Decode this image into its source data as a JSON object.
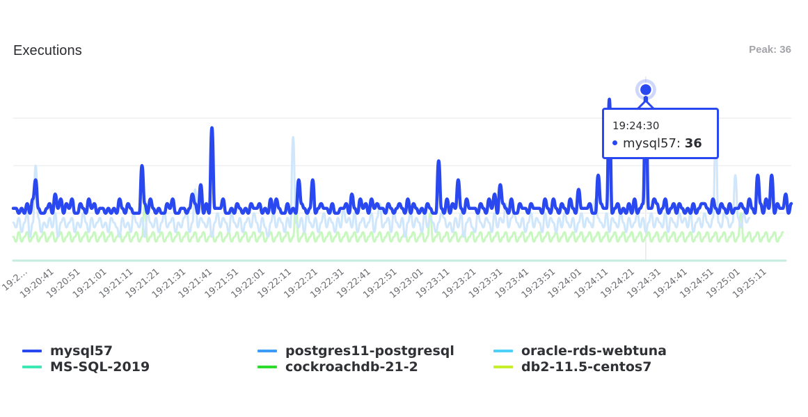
{
  "header": {
    "title": "Executions",
    "peak_label": "Peak: 36"
  },
  "tooltip": {
    "time": "19:24:30",
    "series": "mysql57",
    "separator": ":",
    "value": "36",
    "color": "#2a48f0"
  },
  "legend": [
    {
      "label": "mysql57",
      "color": "#2a48f0"
    },
    {
      "label": "postgres11-postgresql",
      "color": "#3d9cf5"
    },
    {
      "label": "oracle-rds-webtuna",
      "color": "#4fd0f7"
    },
    {
      "label": "MS-SQL-2019",
      "color": "#3ee8b3"
    },
    {
      "label": "cockroachdb-21-2",
      "color": "#2ddc2d"
    },
    {
      "label": "db2-11.5-centos7",
      "color": "#c6ef2a"
    }
  ],
  "chart_data": {
    "type": "line",
    "title": "Executions",
    "subtitle": "Peak: 36",
    "xlabel": "",
    "ylabel": "",
    "ylim": [
      0,
      36
    ],
    "grid": true,
    "gridlines_y": [
      10,
      20,
      30
    ],
    "legend_position": "bottom",
    "x_tick_labels": [
      "19:2…",
      "19:20:41",
      "19:20:51",
      "19:21:01",
      "19:21:11",
      "19:21:21",
      "19:21:31",
      "19:21:41",
      "19:21:51",
      "19:22:01",
      "19:22:11",
      "19:22:21",
      "19:22:31",
      "19:22:41",
      "19:22:51",
      "19:23:01",
      "19:23:11",
      "19:23:21",
      "19:23:31",
      "19:23:41",
      "19:23:51",
      "19:24:01",
      "19:24:11",
      "19:24:21",
      "19:24:31",
      "19:24:41",
      "19:24:51",
      "19:25:01",
      "19:25:11"
    ],
    "x_start": "19:20:30",
    "x_end": "19:25:18",
    "sample_interval_s": 1,
    "highlight": {
      "x": "19:24:30",
      "series": "mysql57",
      "value": 36
    },
    "series": [
      {
        "name": "mysql57",
        "color": "#2a48f0",
        "values": [
          11,
          11,
          10,
          11,
          10,
          12,
          10,
          13,
          17,
          11,
          10,
          10,
          11,
          12,
          10,
          14,
          11,
          13,
          10,
          12,
          11,
          13,
          10,
          10,
          12,
          11,
          10,
          13,
          11,
          12,
          10,
          11,
          11,
          10,
          11,
          10,
          11,
          10,
          13,
          11,
          10,
          12,
          11,
          10,
          10,
          10,
          20,
          12,
          10,
          13,
          11,
          10,
          11,
          10,
          10,
          12,
          11,
          13,
          10,
          10,
          11,
          11,
          10,
          11,
          14,
          12,
          10,
          16,
          10,
          12,
          10,
          28,
          11,
          11,
          11,
          13,
          10,
          10,
          11,
          10,
          12,
          11,
          10,
          11,
          10,
          12,
          11,
          11,
          12,
          10,
          11,
          10,
          13,
          10,
          13,
          11,
          10,
          10,
          12,
          10,
          11,
          10,
          17,
          12,
          11,
          10,
          11,
          17,
          10,
          11,
          12,
          11,
          11,
          10,
          12,
          10,
          10,
          11,
          11,
          12,
          10,
          14,
          11,
          10,
          13,
          11,
          12,
          10,
          13,
          11,
          12,
          11,
          11,
          10,
          12,
          11,
          10,
          11,
          12,
          11,
          10,
          13,
          10,
          12,
          11,
          10,
          11,
          10,
          12,
          11,
          10,
          10,
          21,
          11,
          10,
          13,
          10,
          12,
          11,
          17,
          11,
          10,
          13,
          11,
          11,
          11,
          10,
          12,
          11,
          10,
          13,
          11,
          14,
          10,
          16,
          12,
          11,
          10,
          13,
          10,
          10,
          12,
          11,
          11,
          10,
          12,
          11,
          11,
          11,
          10,
          13,
          11,
          10,
          13,
          11,
          10,
          12,
          11,
          10,
          13,
          11,
          10,
          15,
          11,
          11,
          11,
          12,
          10,
          10,
          18,
          12,
          11,
          11,
          34,
          10,
          11,
          12,
          10,
          11,
          10,
          12,
          10,
          13,
          10,
          11,
          12,
          36,
          11,
          11,
          13,
          12,
          10,
          11,
          13,
          10,
          11,
          12,
          10,
          12,
          11,
          10,
          11,
          10,
          12,
          10,
          11,
          12,
          12,
          11,
          10,
          13,
          11,
          10,
          12,
          11,
          10,
          12,
          10,
          11,
          11,
          12,
          11,
          10,
          13,
          11,
          10,
          18,
          12,
          10,
          13,
          11,
          18,
          10,
          12,
          11,
          11,
          14,
          10,
          12
        ]
      },
      {
        "name": "oracle-rds-webtuna",
        "color": "#cfe6fb",
        "values": [
          8,
          7,
          9,
          6,
          8,
          10,
          5,
          8,
          20,
          9,
          6,
          8,
          7,
          9,
          7,
          10,
          5,
          8,
          9,
          7,
          8,
          9,
          6,
          8,
          7,
          10,
          8,
          6,
          9,
          7,
          8,
          9,
          7,
          8,
          6,
          9,
          8,
          7,
          5,
          9,
          7,
          8,
          6,
          10,
          8,
          7,
          9,
          5,
          10,
          8,
          7,
          9,
          6,
          8,
          10,
          7,
          8,
          9,
          6,
          8,
          7,
          9,
          10,
          6,
          8,
          15,
          7,
          9,
          8,
          7,
          9,
          5,
          8,
          10,
          7,
          9,
          8,
          6,
          10,
          8,
          7,
          9,
          6,
          8,
          9,
          7,
          10,
          8,
          6,
          9,
          7,
          5,
          8,
          10,
          7,
          9,
          8,
          6,
          9,
          7,
          26,
          8,
          7,
          9,
          6,
          10,
          8,
          7,
          9,
          6,
          8,
          10,
          7,
          9,
          8,
          6,
          9,
          7,
          11,
          8,
          9,
          7,
          10,
          6,
          8,
          9,
          7,
          8,
          10,
          6,
          9,
          12,
          7,
          8,
          9,
          6,
          10,
          8,
          7,
          9,
          5,
          8,
          10,
          7,
          9,
          8,
          6,
          10,
          7,
          9,
          8,
          6,
          8,
          10,
          9,
          7,
          8,
          6,
          9,
          7,
          10,
          5,
          8,
          9,
          7,
          6,
          10,
          8,
          7,
          9,
          8,
          6,
          10,
          7,
          9,
          8,
          12,
          7,
          9,
          10,
          8,
          7,
          9,
          6,
          8,
          10,
          7,
          9,
          8,
          6,
          10,
          7,
          9,
          8,
          6,
          9,
          7,
          10,
          8,
          7,
          9,
          6,
          8,
          10,
          7,
          9,
          8,
          7,
          13,
          9,
          8,
          7,
          10,
          6,
          9,
          8,
          7,
          10,
          8,
          6,
          9,
          7,
          8,
          10,
          7,
          9,
          6,
          8,
          10,
          7,
          9,
          8,
          7,
          10,
          6,
          9,
          8,
          7,
          10,
          8,
          9,
          7,
          10,
          6,
          8,
          9,
          7,
          10,
          8,
          7,
          9,
          26,
          8,
          7,
          10,
          9,
          7,
          8,
          18,
          9,
          7,
          10,
          8,
          9
        ]
      },
      {
        "name": "cockroachdb-21-2",
        "color": "#c8f7c0",
        "values": [
          5,
          4,
          6,
          4,
          5,
          6,
          4,
          5,
          6,
          4,
          5,
          6,
          4,
          5,
          6,
          4,
          5,
          6,
          4,
          5,
          6,
          4,
          5,
          6,
          4,
          5,
          6,
          4,
          5,
          6,
          4,
          5,
          6,
          4,
          5,
          6,
          4,
          5,
          6,
          4,
          5,
          6,
          4,
          5,
          6,
          4,
          5,
          12,
          4,
          5,
          6,
          4,
          5,
          6,
          4,
          5,
          6,
          4,
          5,
          6,
          4,
          5,
          6,
          4,
          5,
          6,
          4,
          5,
          6,
          4,
          5,
          6,
          4,
          5,
          6,
          4,
          5,
          6,
          4,
          5,
          6,
          4,
          5,
          6,
          4,
          5,
          6,
          4,
          5,
          6,
          4,
          5,
          6,
          4,
          5,
          6,
          4,
          5,
          6,
          4,
          5,
          12,
          4,
          5,
          6,
          4,
          5,
          6,
          4,
          5,
          6,
          4,
          5,
          6,
          4,
          5,
          6,
          4,
          5,
          6,
          4,
          5,
          6,
          4,
          5,
          6,
          4,
          5,
          6,
          4,
          5,
          6,
          4,
          5,
          6,
          4,
          5,
          6,
          4,
          5,
          6,
          4,
          5,
          6,
          4,
          5,
          6,
          4,
          5,
          10,
          4,
          5,
          6,
          4,
          5,
          6,
          4,
          5,
          6,
          4,
          5,
          6,
          4,
          5,
          6,
          4,
          5,
          6,
          4,
          5,
          6,
          4,
          5,
          6,
          4,
          5,
          6,
          4,
          5,
          6,
          4,
          5,
          6,
          4,
          5,
          6,
          4,
          5,
          6,
          4,
          5,
          6,
          4,
          5,
          6,
          4,
          5,
          6,
          4,
          5,
          6,
          4,
          5,
          6,
          4,
          5,
          6,
          4,
          5,
          6,
          4,
          5,
          6,
          4,
          5,
          6,
          4,
          5,
          6,
          4,
          5,
          6,
          4,
          5,
          6,
          4,
          5,
          6,
          4,
          5,
          6,
          4,
          5,
          6,
          4,
          5,
          6,
          4,
          5,
          6,
          4,
          5,
          6,
          4,
          5,
          6,
          4,
          5,
          6,
          4,
          5,
          6,
          4,
          5,
          6,
          4,
          5,
          6,
          4,
          5,
          10,
          4,
          5,
          6,
          4,
          5,
          6,
          4,
          5,
          6,
          4,
          5,
          6,
          4,
          5,
          6
        ]
      },
      {
        "name": "MS-SQL-2019",
        "color": "#c5ece0",
        "values": [
          0,
          0,
          0,
          0,
          0,
          0,
          0,
          0,
          0,
          0,
          0,
          0,
          0,
          0,
          0,
          0,
          0,
          0,
          0,
          0,
          0,
          0,
          0,
          0,
          0,
          0,
          0,
          0,
          0,
          0,
          0,
          0,
          0,
          0,
          0,
          0,
          0,
          0,
          0,
          0,
          0,
          0,
          0,
          0,
          0,
          0,
          0,
          0,
          0,
          0,
          0,
          0,
          0,
          0,
          0,
          0,
          0,
          0,
          0,
          0,
          0,
          0,
          0,
          0,
          0,
          0,
          0,
          0,
          0,
          0,
          0,
          0,
          0,
          0,
          0,
          0,
          0,
          0,
          0,
          0,
          0,
          0,
          0,
          0,
          0,
          0,
          0,
          0,
          0,
          0,
          0,
          0,
          0,
          0,
          0,
          0,
          0,
          0,
          0,
          0,
          0,
          0,
          0,
          0,
          0,
          0,
          0,
          0,
          0,
          0,
          0,
          0,
          0,
          0,
          0,
          0,
          0,
          0,
          0,
          0,
          0,
          0,
          0,
          0,
          0,
          0,
          0,
          0,
          0,
          0,
          0,
          0,
          0,
          0,
          0,
          0,
          0,
          0,
          0,
          0,
          0,
          0,
          0,
          0,
          0,
          0,
          0,
          0,
          0,
          0,
          0,
          0,
          0,
          0,
          0,
          0,
          0,
          0,
          0,
          0,
          0,
          0,
          0,
          0,
          0,
          0,
          0,
          0,
          0,
          0,
          0,
          0,
          0,
          0,
          0,
          0,
          0,
          0,
          0,
          0,
          0,
          0,
          0,
          0,
          0,
          0,
          0,
          0,
          0,
          0,
          0,
          0,
          0,
          0,
          0,
          0,
          0,
          0,
          0,
          0,
          0,
          0,
          0,
          0,
          0,
          0,
          0,
          0,
          0,
          0,
          0,
          0,
          0,
          0,
          0,
          0,
          0,
          0,
          0,
          0,
          0,
          0,
          0,
          0,
          0,
          0,
          0,
          0,
          0,
          0,
          0,
          0,
          0,
          0,
          0,
          0,
          0,
          0,
          0,
          0,
          0,
          0,
          0,
          0,
          0,
          0,
          0,
          0,
          0,
          0,
          0,
          0,
          0,
          0,
          0,
          0,
          0,
          0,
          0,
          0,
          0,
          0,
          0,
          0,
          0,
          0,
          0,
          0,
          0,
          0,
          0,
          0,
          0,
          0,
          0,
          0,
          0
        ]
      },
      {
        "name": "postgres11-postgresql",
        "color": "#3d9cf5",
        "values": []
      },
      {
        "name": "db2-11.5-centos7",
        "color": "#c6ef2a",
        "values": []
      }
    ]
  }
}
